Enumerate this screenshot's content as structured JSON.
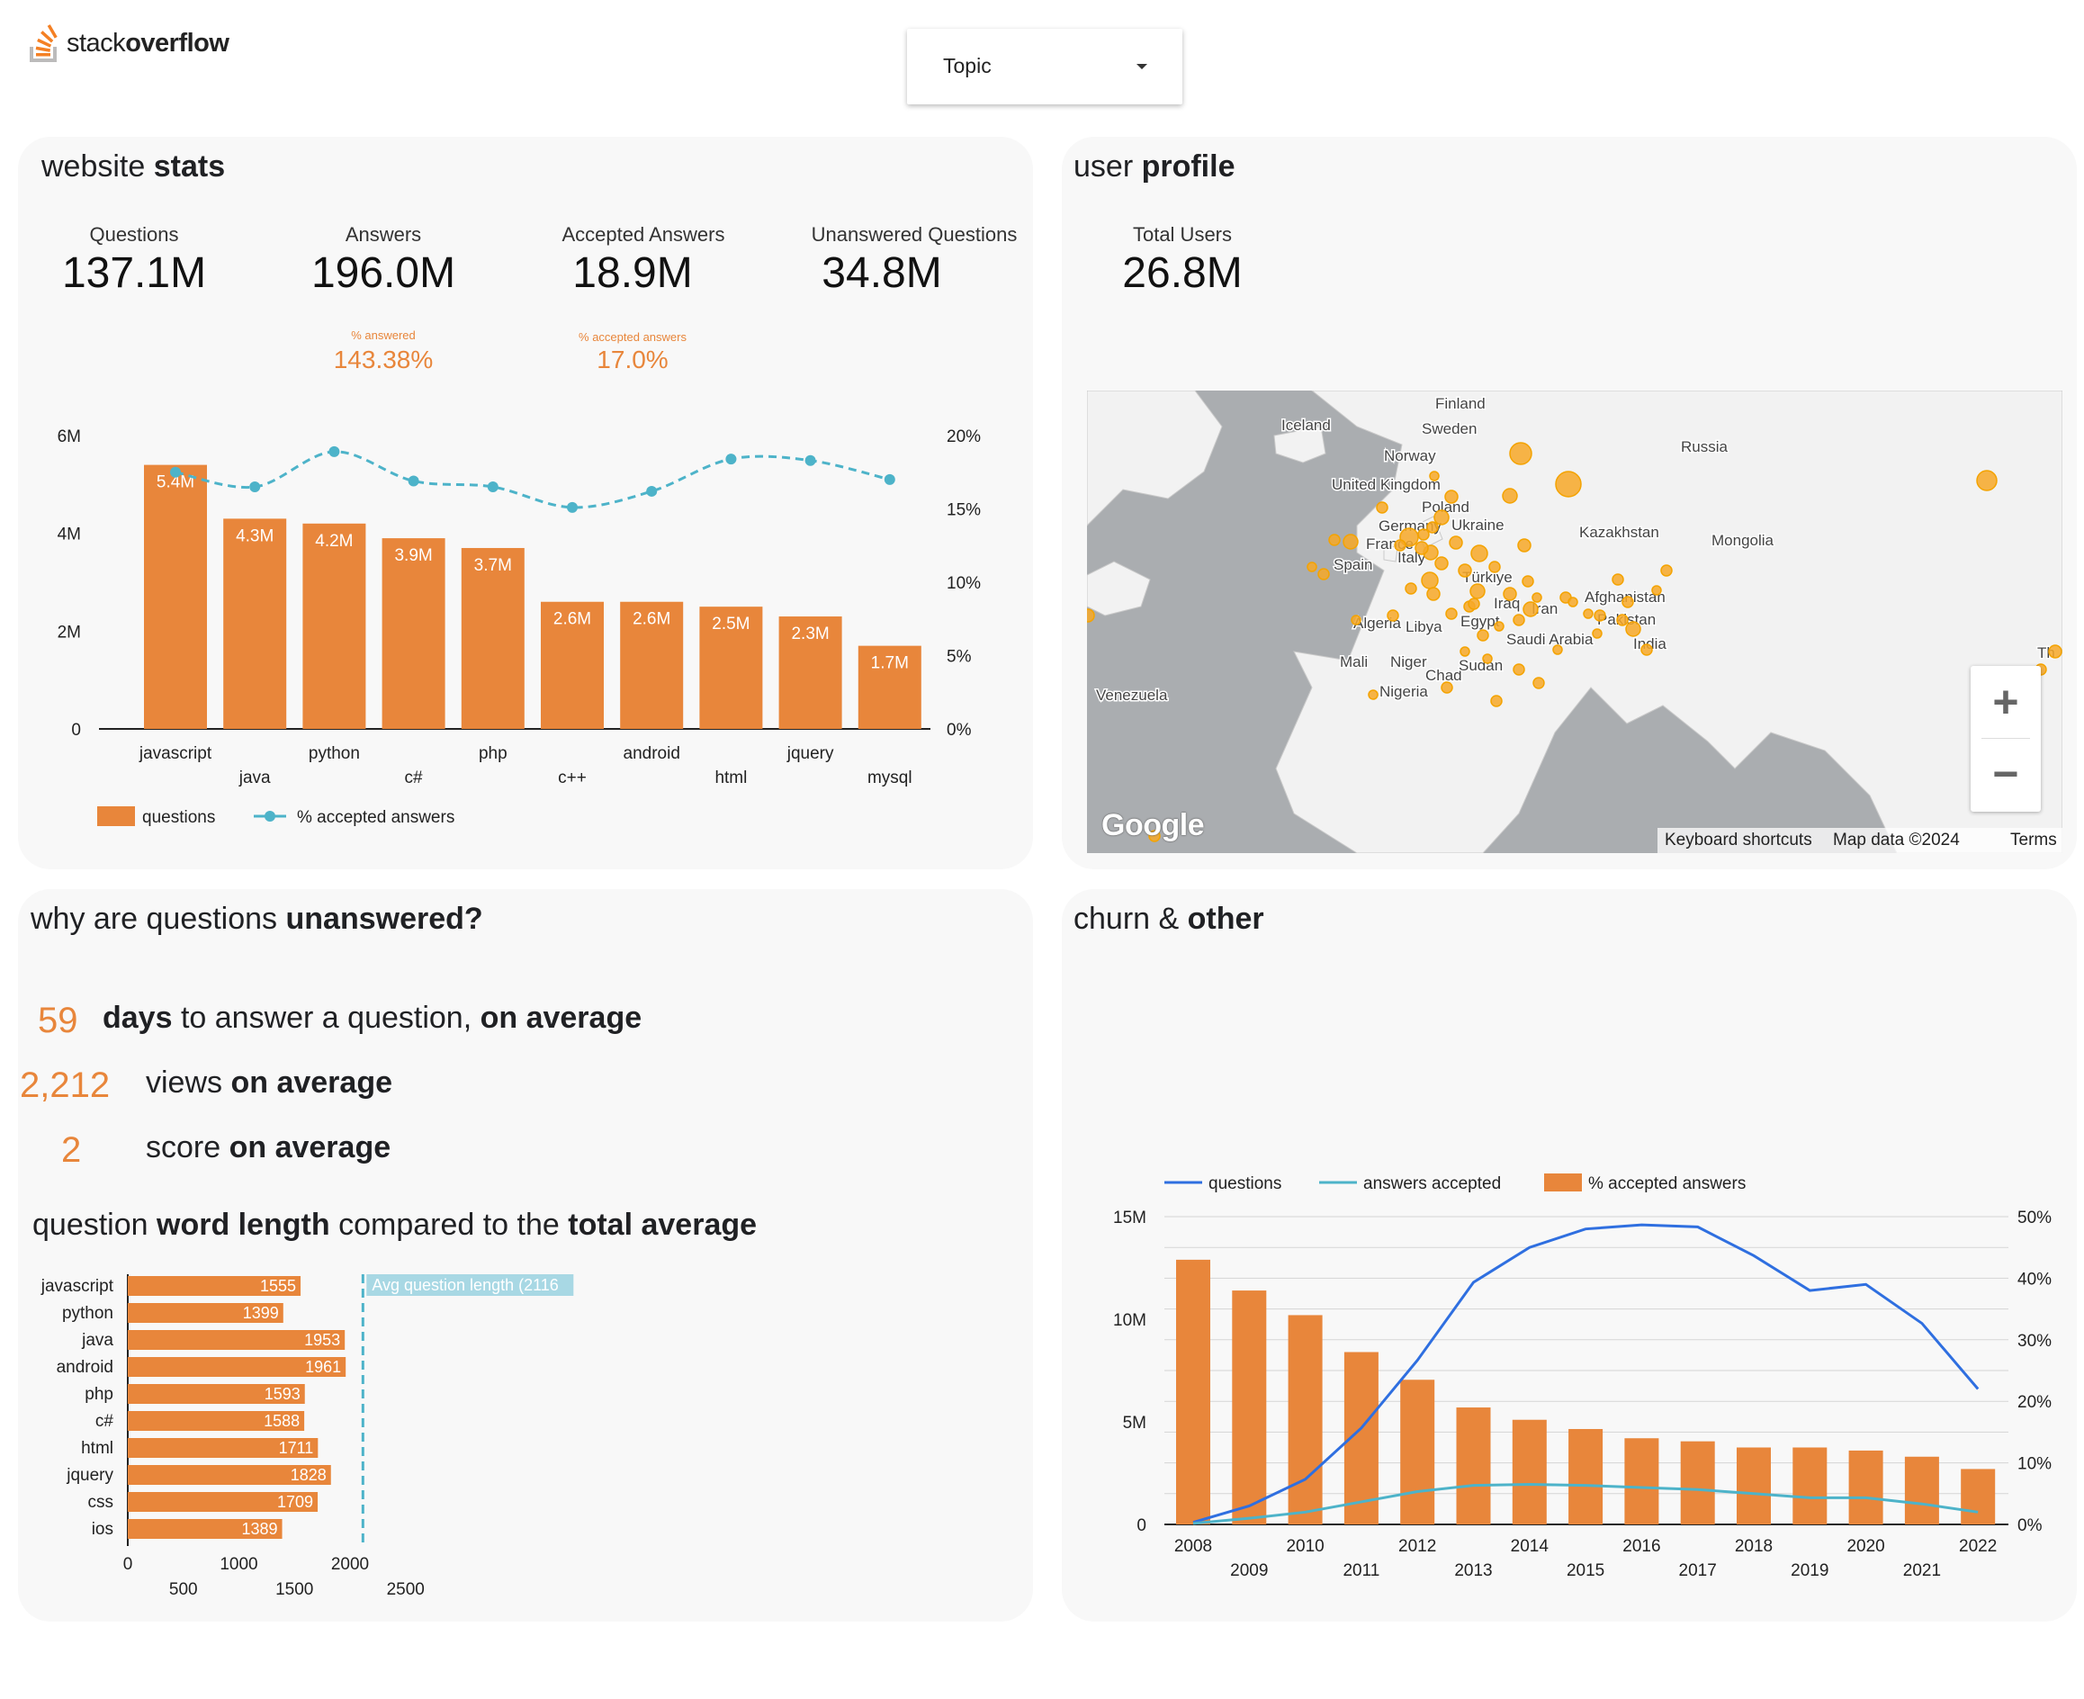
{
  "brand": {
    "logo_text_light": "stack",
    "logo_text_bold": "overflow"
  },
  "filter": {
    "label": "Topic"
  },
  "website_stats": {
    "title_light": "website ",
    "title_bold": "stats",
    "kpis": [
      {
        "label": "Questions",
        "value": "137.1M"
      },
      {
        "label": "Answers",
        "value": "196.0M"
      },
      {
        "label": "Accepted Answers",
        "value": "18.9M"
      },
      {
        "label": "Unanswered Questions",
        "value": "34.8M"
      }
    ],
    "sub_kpis": [
      {
        "label": "% answered",
        "value": "143.38%"
      },
      {
        "label": "% accepted answers",
        "value": "17.0%"
      }
    ]
  },
  "user_profile": {
    "title_light": "user ",
    "title_bold": "profile",
    "kpi_label": "Total Users",
    "kpi_value": "26.8M",
    "map": {
      "labels": [
        "Finland",
        "Iceland",
        "Sweden",
        "Norway",
        "Russia",
        "United Kingdom",
        "Poland",
        "Germany",
        "Ukraine",
        "France",
        "Kazakhstan",
        "Mongolia",
        "Italy",
        "Spain",
        "Türkiye",
        "Afghanistan",
        "Iraq",
        "Iran",
        "Pakistan",
        "Algeria",
        "Libya",
        "Egypt",
        "Saudi Arabia",
        "India",
        "Mali",
        "Niger",
        "Chad",
        "Sudan",
        "Nigeria",
        "Venezuela",
        "Th"
      ],
      "footer": {
        "shortcuts": "Keyboard shortcuts",
        "data": "Map data ©2024",
        "terms": "Terms"
      },
      "google": "Google",
      "zoom_in": "+",
      "zoom_out": "−"
    }
  },
  "unanswered": {
    "title_light": "why are questions ",
    "title_bold": "unanswered?",
    "metrics": [
      {
        "number": "59",
        "text_bold1": "days",
        "text_light": " to answer a question, ",
        "text_bold2": "on average"
      },
      {
        "number": "2,212",
        "text_bold1": "",
        "text_light": "views ",
        "text_bold2": "on average"
      },
      {
        "number": "2",
        "text_bold1": "",
        "text_light": "score ",
        "text_bold2": "on average"
      }
    ],
    "length_title": {
      "t1": "question ",
      "b1": "word length",
      "t2": " compared to the ",
      "b2": "total average"
    }
  },
  "churn": {
    "title_light": "churn & ",
    "title_bold": "other"
  },
  "chart_data": [
    {
      "type": "bar",
      "categories": [
        "javascript",
        "java",
        "python",
        "c#",
        "php",
        "c++",
        "android",
        "html",
        "jquery",
        "mysql"
      ],
      "series": [
        {
          "name": "questions",
          "type": "bar",
          "axis": "left",
          "values": [
            5.4,
            4.3,
            4.2,
            3.9,
            3.7,
            2.6,
            2.6,
            2.5,
            2.3,
            1.7
          ],
          "labels": [
            "5.4M",
            "4.3M",
            "4.2M",
            "3.9M",
            "3.7M",
            "2.6M",
            "2.6M",
            "2.5M",
            "2.3M",
            "1.7M"
          ]
        },
        {
          "name": "% accepted answers",
          "type": "line",
          "axis": "right",
          "values": [
            17.5,
            16.5,
            18.9,
            16.9,
            16.5,
            15.1,
            16.2,
            18.4,
            18.3,
            17.0
          ]
        }
      ],
      "ylim": [
        0,
        6
      ],
      "yticks": [
        "0",
        "2M",
        "4M",
        "6M"
      ],
      "y2lim": [
        0,
        20
      ],
      "y2ticks": [
        "0%",
        "5%",
        "10%",
        "15%",
        "20%"
      ],
      "legend": "bottom-left",
      "colors": {
        "bar": "#e8863b",
        "line": "#4db3c9"
      }
    },
    {
      "type": "bar",
      "orientation": "horizontal",
      "categories": [
        "javascript",
        "python",
        "java",
        "android",
        "php",
        "c#",
        "html",
        "jquery",
        "css",
        "ios"
      ],
      "values": [
        1555,
        1399,
        1953,
        1961,
        1593,
        1588,
        1711,
        1828,
        1709,
        1389
      ],
      "reference_line": {
        "label": "Avg question length (2116",
        "value": 2116
      },
      "xlim": [
        0,
        2500
      ],
      "xticks": [
        0,
        500,
        1000,
        1500,
        2000,
        2500
      ],
      "colors": {
        "bar": "#e8863b",
        "reference": "#4db3c9"
      }
    },
    {
      "type": "bar",
      "categories": [
        "2008",
        "2009",
        "2010",
        "2011",
        "2012",
        "2013",
        "2014",
        "2015",
        "2016",
        "2017",
        "2018",
        "2019",
        "2020",
        "2021",
        "2022"
      ],
      "series": [
        {
          "name": "questions",
          "type": "line",
          "axis": "left",
          "values": [
            0.1,
            0.9,
            2.2,
            4.7,
            8.0,
            11.8,
            13.5,
            14.4,
            14.6,
            14.5,
            13.1,
            11.4,
            11.7,
            9.8,
            6.6
          ]
        },
        {
          "name": "answers accepted",
          "type": "line",
          "axis": "left",
          "values": [
            0.05,
            0.3,
            0.6,
            1.1,
            1.6,
            1.9,
            1.95,
            1.9,
            1.8,
            1.7,
            1.5,
            1.3,
            1.3,
            1.0,
            0.6
          ]
        },
        {
          "name": "% accepted answers",
          "type": "bar",
          "axis": "right",
          "values": [
            43,
            38,
            34,
            28,
            23.5,
            19,
            17,
            15.5,
            14,
            13.5,
            12.5,
            12.5,
            12,
            11,
            9
          ]
        }
      ],
      "ylim": [
        0,
        15
      ],
      "yticks": [
        "0",
        "5M",
        "10M",
        "15M"
      ],
      "y2lim": [
        0,
        50
      ],
      "y2ticks": [
        "0%",
        "10%",
        "20%",
        "30%",
        "40%",
        "50%"
      ],
      "legend": "top",
      "colors": {
        "questions": "#2f6fe0",
        "answers accepted": "#4db3c9",
        "bar": "#e8863b"
      }
    }
  ]
}
